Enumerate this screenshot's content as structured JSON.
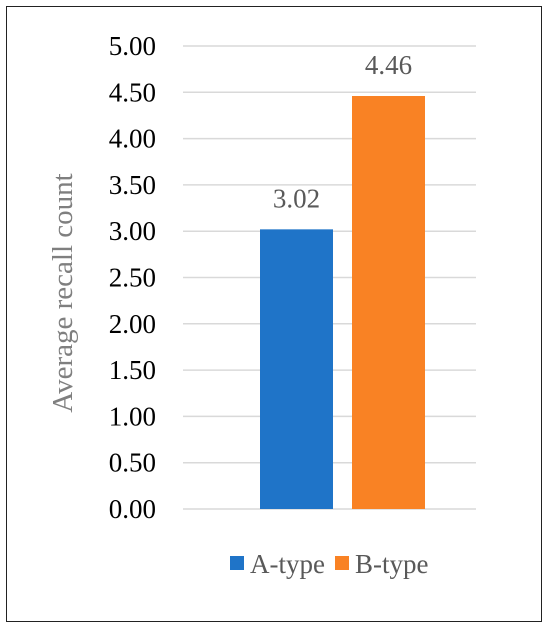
{
  "chart_data": {
    "type": "bar",
    "title": "",
    "xlabel": "",
    "ylabel": "Average recall count",
    "ylim": [
      0,
      5
    ],
    "yticks": [
      0,
      0.5,
      1,
      1.5,
      2,
      2.5,
      3,
      3.5,
      4,
      4.5,
      5
    ],
    "ytick_labels": [
      "0.00",
      "0.50",
      "1.00",
      "1.50",
      "2.00",
      "2.50",
      "3.00",
      "3.50",
      "4.00",
      "4.50",
      "5.00"
    ],
    "grid": true,
    "legend_position": "bottom",
    "series": [
      {
        "name": "A-type",
        "value": 3.02,
        "label": "3.02",
        "color": "#1f74c8"
      },
      {
        "name": "B-type",
        "value": 4.46,
        "label": "4.46",
        "color": "#f98224"
      }
    ]
  }
}
